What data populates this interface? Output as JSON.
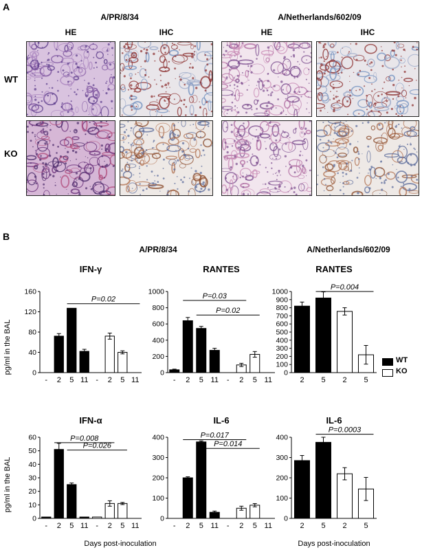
{
  "panel_a": {
    "letter": "A",
    "strain_left": "A/PR/8/34",
    "strain_right": "A/Netherlands/602/09",
    "stain_he": "HE",
    "stain_ihc": "IHC",
    "row_wt": "WT",
    "row_ko": "KO",
    "images": [
      {
        "name": "pr8-wt-he",
        "tone": "purple"
      },
      {
        "name": "pr8-wt-ihc",
        "tone": "blue-red"
      },
      {
        "name": "pr8-ko-he",
        "tone": "pink"
      },
      {
        "name": "pr8-ko-ihc",
        "tone": "blue-red"
      },
      {
        "name": "nl-wt-he",
        "tone": "dense-purple"
      },
      {
        "name": "nl-wt-ihc",
        "tone": "brown"
      },
      {
        "name": "nl-ko-he",
        "tone": "pink"
      },
      {
        "name": "nl-ko-ihc",
        "tone": "brown"
      }
    ]
  },
  "panel_b": {
    "letter": "B",
    "strain_left": "A/PR/8/34",
    "strain_right": "A/Netherlands/602/09",
    "ylabel": "pg/ml in the BAL",
    "xlabel": "Days post-inoculation",
    "legend_wt": "WT",
    "legend_ko": "KO",
    "colors": {
      "wt": "#000000",
      "ko": "#ffffff"
    }
  },
  "chart_data": [
    {
      "type": "bar",
      "title": "IFN-γ",
      "ylim": [
        0,
        160
      ],
      "yticks": [
        "0",
        "40",
        "80",
        "120",
        "160"
      ],
      "categories": [
        "-",
        "2",
        "5",
        "11",
        "-",
        "2",
        "5",
        "11"
      ],
      "groups": [
        "WT",
        "WT",
        "WT",
        "WT",
        "KO",
        "KO",
        "KO",
        "KO"
      ],
      "values": [
        0,
        72,
        127,
        42,
        0,
        72,
        40,
        0
      ],
      "errors": [
        0,
        5,
        0,
        4,
        0,
        6,
        3,
        0
      ],
      "pvalues": [
        {
          "label": "P=0.02",
          "from": 2,
          "to": 7,
          "level": 136
        }
      ]
    },
    {
      "type": "bar",
      "title": "RANTES",
      "ylim": [
        0,
        1000
      ],
      "yticks": [
        "0",
        "200",
        "400",
        "600",
        "800",
        "1000"
      ],
      "categories": [
        "-",
        "2",
        "5",
        "11",
        "-",
        "2",
        "5",
        "11"
      ],
      "groups": [
        "WT",
        "WT",
        "WT",
        "WT",
        "KO",
        "KO",
        "KO",
        "KO"
      ],
      "values": [
        35,
        640,
        545,
        275,
        0,
        95,
        225,
        0
      ],
      "errors": [
        8,
        40,
        25,
        25,
        0,
        20,
        35,
        0
      ],
      "pvalues": [
        {
          "label": "P=0.03",
          "from": 1,
          "to": 5,
          "level": 890
        },
        {
          "label": "P=0.02",
          "from": 2,
          "to": 6,
          "level": 710
        }
      ]
    },
    {
      "type": "bar",
      "title": "RANTES",
      "ylim": [
        0,
        1000
      ],
      "yticks": [
        "0",
        "100",
        "200",
        "300",
        "400",
        "500",
        "600",
        "700",
        "800",
        "900",
        "1000"
      ],
      "categories": [
        "2",
        "5",
        "2",
        "5"
      ],
      "groups": [
        "WT",
        "WT",
        "KO",
        "KO"
      ],
      "values": [
        820,
        920,
        755,
        220
      ],
      "errors": [
        50,
        75,
        45,
        115
      ],
      "pvalues": [
        {
          "label": "P=0.004",
          "from": 1,
          "to": 3,
          "level": 1000
        }
      ]
    },
    {
      "type": "bar",
      "title": "IFN-α",
      "ylim": [
        0,
        60
      ],
      "yticks": [
        "0",
        "10",
        "20",
        "30",
        "40",
        "50",
        "60"
      ],
      "categories": [
        "-",
        "2",
        "5",
        "11",
        "-",
        "2",
        "5",
        "11"
      ],
      "groups": [
        "WT",
        "WT",
        "WT",
        "WT",
        "KO",
        "KO",
        "KO",
        "KO"
      ],
      "values": [
        1,
        51,
        25,
        1,
        1,
        11,
        11,
        0
      ],
      "errors": [
        0,
        4.5,
        1.2,
        0,
        0,
        2,
        0.8,
        0
      ],
      "pvalues": [
        {
          "label": "P=0.008",
          "from": 1,
          "to": 5,
          "level": 56
        },
        {
          "label": "P=0.026",
          "from": 2,
          "to": 6,
          "level": 50.5
        }
      ]
    },
    {
      "type": "bar",
      "title": "IL-6",
      "ylim": [
        0,
        400
      ],
      "yticks": [
        "0",
        "100",
        "200",
        "300",
        "400"
      ],
      "categories": [
        "-",
        "2",
        "5",
        "11",
        "-",
        "2",
        "5",
        "11"
      ],
      "groups": [
        "WT",
        "WT",
        "WT",
        "WT",
        "KO",
        "KO",
        "KO",
        "KO"
      ],
      "values": [
        0,
        200,
        377,
        30,
        0,
        50,
        65,
        0
      ],
      "errors": [
        0,
        5,
        5,
        6,
        0,
        10,
        8,
        0
      ],
      "pvalues": [
        {
          "label": "P=0.017",
          "from": 1,
          "to": 5,
          "level": 388
        },
        {
          "label": "P=0.014",
          "from": 2,
          "to": 6,
          "level": 345
        }
      ]
    },
    {
      "type": "bar",
      "title": "IL-6",
      "ylim": [
        0,
        400
      ],
      "yticks": [
        "0",
        "100",
        "200",
        "300",
        "400"
      ],
      "categories": [
        "2",
        "5",
        "2",
        "5"
      ],
      "groups": [
        "WT",
        "WT",
        "KO",
        "KO"
      ],
      "values": [
        285,
        375,
        220,
        145
      ],
      "errors": [
        25,
        25,
        30,
        57
      ],
      "pvalues": [
        {
          "label": "P=0.0003",
          "from": 1,
          "to": 3,
          "level": 415
        }
      ]
    }
  ]
}
